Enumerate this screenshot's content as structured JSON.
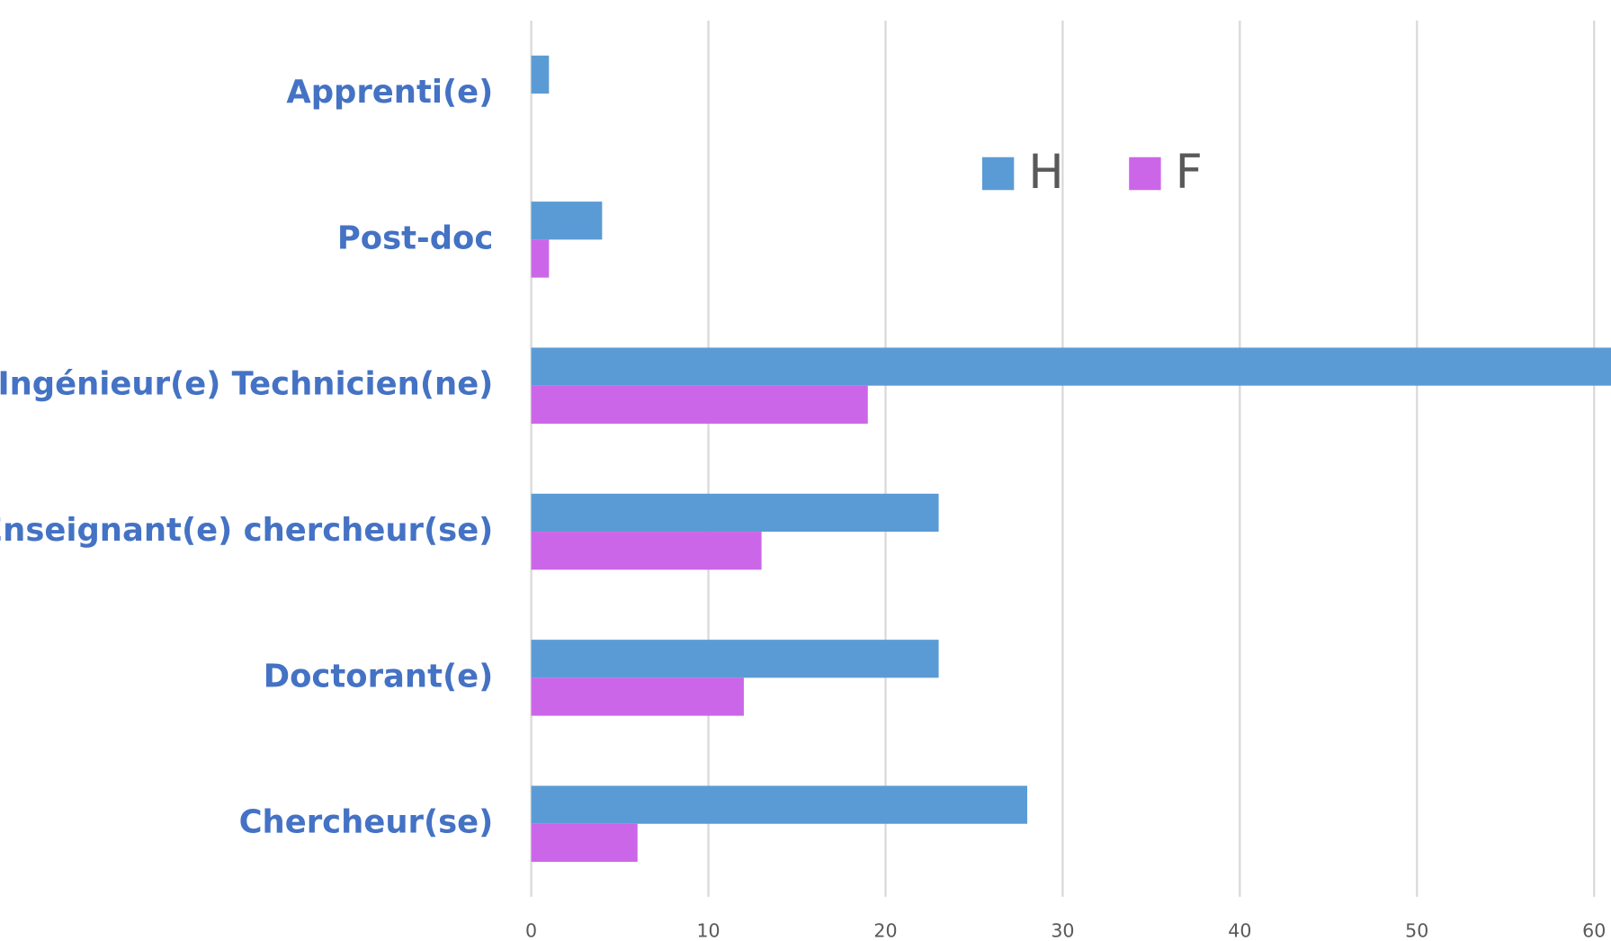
{
  "chart_data": {
    "type": "bar",
    "orientation": "horizontal",
    "categories": [
      "Apprenti(e)",
      "Post-doc",
      "Ingénieur(e) Technicien(ne)",
      "Enseignant(e) chercheur(se)",
      "Doctorant(e)",
      "Chercheur(se)"
    ],
    "series": [
      {
        "name": "H",
        "color": "#5b9bd5",
        "values": [
          1,
          4,
          61,
          23,
          23,
          28
        ]
      },
      {
        "name": "F",
        "color": "#cc66e8",
        "values": [
          0,
          1,
          19,
          13,
          12,
          6
        ]
      }
    ],
    "xlim": [
      0,
      61
    ],
    "xticks": [
      0,
      10,
      20,
      30,
      40,
      50,
      60
    ],
    "grid": true,
    "legend": "top"
  }
}
